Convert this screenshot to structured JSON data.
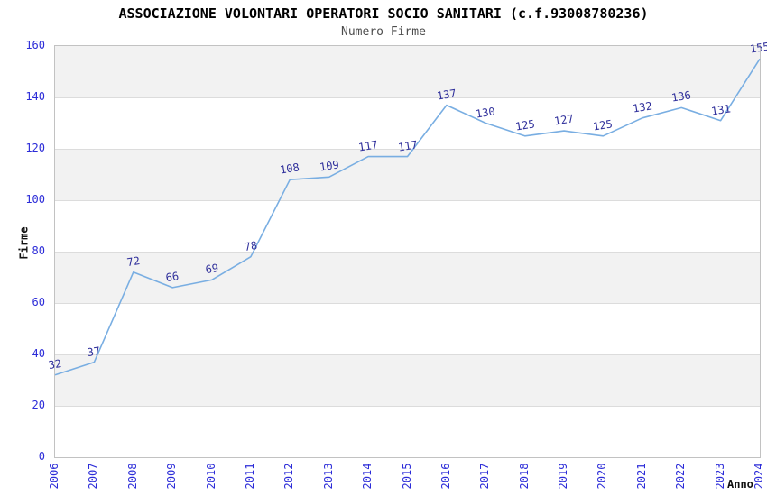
{
  "header": {
    "title": "ASSOCIAZIONE VOLONTARI OPERATORI SOCIO SANITARI (c.f.93008780236)",
    "subtitle": "Numero Firme"
  },
  "axes": {
    "y_title": "Firme",
    "x_title": "Anno"
  },
  "chart_data": {
    "type": "line",
    "title": "ASSOCIAZIONE VOLONTARI OPERATORI SOCIO SANITARI (c.f.93008780236)",
    "subtitle": "Numero Firme",
    "xlabel": "Anno",
    "ylabel": "Firme",
    "x": [
      2006,
      2007,
      2008,
      2009,
      2010,
      2011,
      2012,
      2013,
      2014,
      2015,
      2016,
      2017,
      2018,
      2019,
      2020,
      2021,
      2022,
      2023,
      2024
    ],
    "series": [
      {
        "name": "Numero Firme",
        "values": [
          32,
          37,
          72,
          66,
          69,
          78,
          108,
          109,
          117,
          117,
          137,
          130,
          125,
          127,
          125,
          132,
          136,
          131,
          155
        ]
      }
    ],
    "point_labels_visible": true,
    "ylim": [
      0,
      160
    ],
    "yticks": [
      0,
      20,
      40,
      60,
      80,
      100,
      120,
      140,
      160
    ],
    "grid": "horizontal-alternating-bands",
    "legend_position": "none",
    "colors": {
      "line": "#79aee2",
      "point_label": "#31319c",
      "tick_label": "#2c2cd8",
      "band_gray": "#f2f2f2",
      "band_white": "#ffffff",
      "gridline": "#dcdcdc",
      "title": "#000000",
      "subtitle": "#4d4d4d"
    }
  }
}
